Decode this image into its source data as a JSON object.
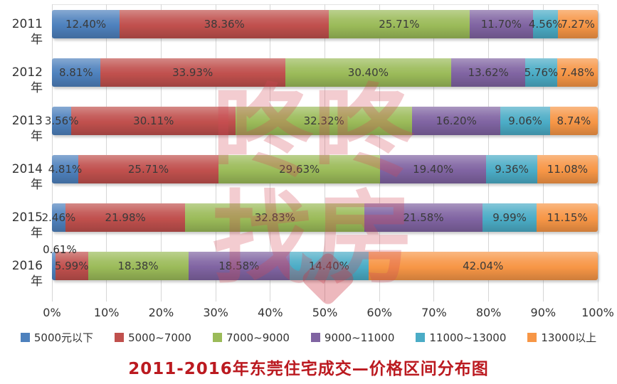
{
  "title": {
    "text": "2011-2016年东莞住宅成交—价格区间分布图",
    "color": "#BB1A20"
  },
  "watermark": {
    "line1": "咚咚",
    "line2": "找房"
  },
  "chart_data": {
    "type": "bar",
    "orientation": "horizontal-stacked",
    "title": "2011-2016年东莞住宅成交—价格区间分布图",
    "categories": [
      "2011年",
      "2012年",
      "2013年",
      "2014年",
      "2015年",
      "2016年"
    ],
    "series": [
      {
        "name": "5000元以下",
        "color": "#4E81BD",
        "values": [
          12.4,
          8.81,
          3.56,
          4.81,
          2.46,
          0.61
        ]
      },
      {
        "name": "5000~7000",
        "color": "#C0504D",
        "values": [
          38.36,
          33.93,
          30.11,
          25.71,
          21.98,
          5.99
        ]
      },
      {
        "name": "7000~9000",
        "color": "#9BBB59",
        "values": [
          25.71,
          30.4,
          32.32,
          29.63,
          32.83,
          18.38
        ]
      },
      {
        "name": "9000~11000",
        "color": "#8064A2",
        "values": [
          11.7,
          13.62,
          16.2,
          19.4,
          21.58,
          18.58
        ]
      },
      {
        "name": "11000~13000",
        "color": "#4BACC6",
        "values": [
          4.56,
          5.76,
          9.06,
          9.36,
          9.99,
          14.4
        ]
      },
      {
        "name": "13000以上",
        "color": "#F79646",
        "values": [
          7.27,
          7.48,
          8.74,
          11.08,
          11.15,
          42.04
        ]
      }
    ],
    "x_ticks": [
      "0%",
      "10%",
      "20%",
      "30%",
      "40%",
      "50%",
      "60%",
      "70%",
      "80%",
      "90%",
      "100%"
    ],
    "xlim": [
      0,
      100
    ],
    "value_suffix": "%",
    "grid": true,
    "legend_position": "bottom",
    "labels_above_bar": [
      {
        "category_index": 5,
        "series_index": 0
      }
    ]
  }
}
